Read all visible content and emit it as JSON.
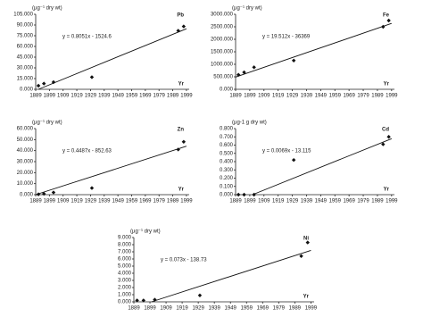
{
  "chart_data": [
    {
      "type": "scatter",
      "title": "Pb",
      "y_label": "(µg⁻¹ dry wt)",
      "x_label": "Yr",
      "annotation": "y = 0.8051x - 1524.6",
      "color": "#111",
      "x": [
        1891,
        1895,
        1902,
        1930,
        1993,
        1997
      ],
      "values": [
        5,
        8,
        10,
        17,
        82,
        88
      ],
      "trend": {
        "x": [
          1891,
          1999
        ],
        "values": [
          0,
          84.8
        ]
      },
      "xlim": [
        1889,
        2001
      ],
      "ylim": [
        0,
        105
      ],
      "xticks": [
        1889,
        1899,
        1909,
        1919,
        1929,
        1939,
        1949,
        1959,
        1969,
        1979,
        1989,
        1999
      ],
      "yticks": [
        {
          "value": 0,
          "label": "0.000"
        },
        {
          "value": 15,
          "label": "15.000"
        },
        {
          "value": 30,
          "label": "30.000"
        },
        {
          "value": 45,
          "label": "45.000"
        },
        {
          "value": 60,
          "label": "60.000"
        },
        {
          "value": 75,
          "label": "75.000"
        },
        {
          "value": 90,
          "label": "90.000"
        },
        {
          "value": 105,
          "label": "105.000"
        }
      ]
    },
    {
      "type": "scatter",
      "title": "Fe",
      "y_label": "(µg⁻¹ dry wt)",
      "x_label": "Yr",
      "annotation": "y = 19.512x - 36369",
      "color": "#111",
      "x": [
        1891,
        1895,
        1902,
        1930,
        1993,
        1997
      ],
      "values": [
        580,
        680,
        880,
        1150,
        2500,
        2750
      ],
      "trend": {
        "x": [
          1889,
          1999
        ],
        "values": [
          489,
          2635
        ]
      },
      "xlim": [
        1889,
        2001
      ],
      "ylim": [
        0,
        3000
      ],
      "xticks": [
        1889,
        1899,
        1909,
        1919,
        1929,
        1939,
        1949,
        1959,
        1969,
        1979,
        1989,
        1999
      ],
      "yticks": [
        {
          "value": 0,
          "label": "0.000"
        },
        {
          "value": 500,
          "label": "500.000"
        },
        {
          "value": 1000,
          "label": "1000.000"
        },
        {
          "value": 1500,
          "label": "1500.000"
        },
        {
          "value": 2000,
          "label": "2000.000"
        },
        {
          "value": 2500,
          "label": "2500.000"
        },
        {
          "value": 3000,
          "label": "3000.000"
        }
      ]
    },
    {
      "type": "scatter",
      "title": "Zn",
      "y_label": "(µg⁻¹ dry wt)",
      "x_label": "Yr",
      "annotation": "y = 0.4487x - 852.63",
      "color": "#111",
      "x": [
        1891,
        1895,
        1902,
        1930,
        1993,
        1997
      ],
      "values": [
        300,
        800,
        2000,
        6000,
        41000,
        48000
      ],
      "trend": {
        "x": [
          1889,
          1999
        ],
        "values": [
          0,
          44000
        ]
      },
      "xlim": [
        1889,
        2001
      ],
      "ylim": [
        0,
        60000
      ],
      "xticks": [
        1889,
        1899,
        1909,
        1919,
        1929,
        1939,
        1949,
        1959,
        1969,
        1979,
        1989,
        1999
      ],
      "yticks": [
        {
          "value": 0,
          "label": "0.000"
        },
        {
          "value": 10000,
          "label": "10.000"
        },
        {
          "value": 20000,
          "label": "20.000"
        },
        {
          "value": 30000,
          "label": "30.000"
        },
        {
          "value": 40000,
          "label": "40.000"
        },
        {
          "value": 50000,
          "label": "50.000"
        },
        {
          "value": 60000,
          "label": "60.000"
        }
      ]
    },
    {
      "type": "scatter",
      "title": "Cd",
      "y_label": "(µg-1 g dry wt)",
      "x_label": "Yr",
      "annotation": "y = 0.0069x - 13.115",
      "color": "#111",
      "x": [
        1891,
        1895,
        1902,
        1930,
        1993,
        1997
      ],
      "values": [
        0,
        0,
        0,
        0.42,
        0.61,
        0.7
      ],
      "trend": {
        "x": [
          1901,
          1999
        ],
        "values": [
          0,
          0.678
        ]
      },
      "xlim": [
        1889,
        2001
      ],
      "ylim": [
        0,
        0.8
      ],
      "xticks": [
        1889,
        1899,
        1909,
        1919,
        1929,
        1939,
        1949,
        1959,
        1969,
        1979,
        1989,
        1999
      ],
      "yticks": [
        {
          "value": 0,
          "label": "0.000"
        },
        {
          "value": 0.1,
          "label": "0.100"
        },
        {
          "value": 0.2,
          "label": "0.200"
        },
        {
          "value": 0.3,
          "label": "0.300"
        },
        {
          "value": 0.4,
          "label": "0.400"
        },
        {
          "value": 0.5,
          "label": "0.500"
        },
        {
          "value": 0.6,
          "label": "0.600"
        },
        {
          "value": 0.7,
          "label": "0.700"
        },
        {
          "value": 0.8,
          "label": "0.800"
        }
      ]
    },
    {
      "type": "scatter",
      "title": "Ni",
      "y_label": "(µg⁻¹ dry wt)",
      "x_label": "Yr",
      "annotation": "y = 0.073x - 138.73",
      "color": "#111",
      "x": [
        1891,
        1895,
        1902,
        1930,
        1993,
        1997
      ],
      "values": [
        0.2,
        0.2,
        0.3,
        0.9,
        6.4,
        8.3
      ],
      "trend": {
        "x": [
          1900,
          1999
        ],
        "values": [
          0,
          7.2
        ]
      },
      "xlim": [
        1889,
        2001
      ],
      "ylim": [
        0,
        9
      ],
      "xticks": [
        1889,
        1899,
        1909,
        1919,
        1929,
        1939,
        1949,
        1959,
        1969,
        1979,
        1989,
        1999
      ],
      "yticks": [
        {
          "value": 0,
          "label": "0.000"
        },
        {
          "value": 1,
          "label": "1.000"
        },
        {
          "value": 2,
          "label": "2.000"
        },
        {
          "value": 3,
          "label": "3.000"
        },
        {
          "value": 4,
          "label": "4.000"
        },
        {
          "value": 5,
          "label": "5.000"
        },
        {
          "value": 6,
          "label": "6.000"
        },
        {
          "value": 7,
          "label": "7.000"
        },
        {
          "value": 8,
          "label": "8.000"
        },
        {
          "value": 9,
          "label": "9.000"
        }
      ]
    }
  ]
}
